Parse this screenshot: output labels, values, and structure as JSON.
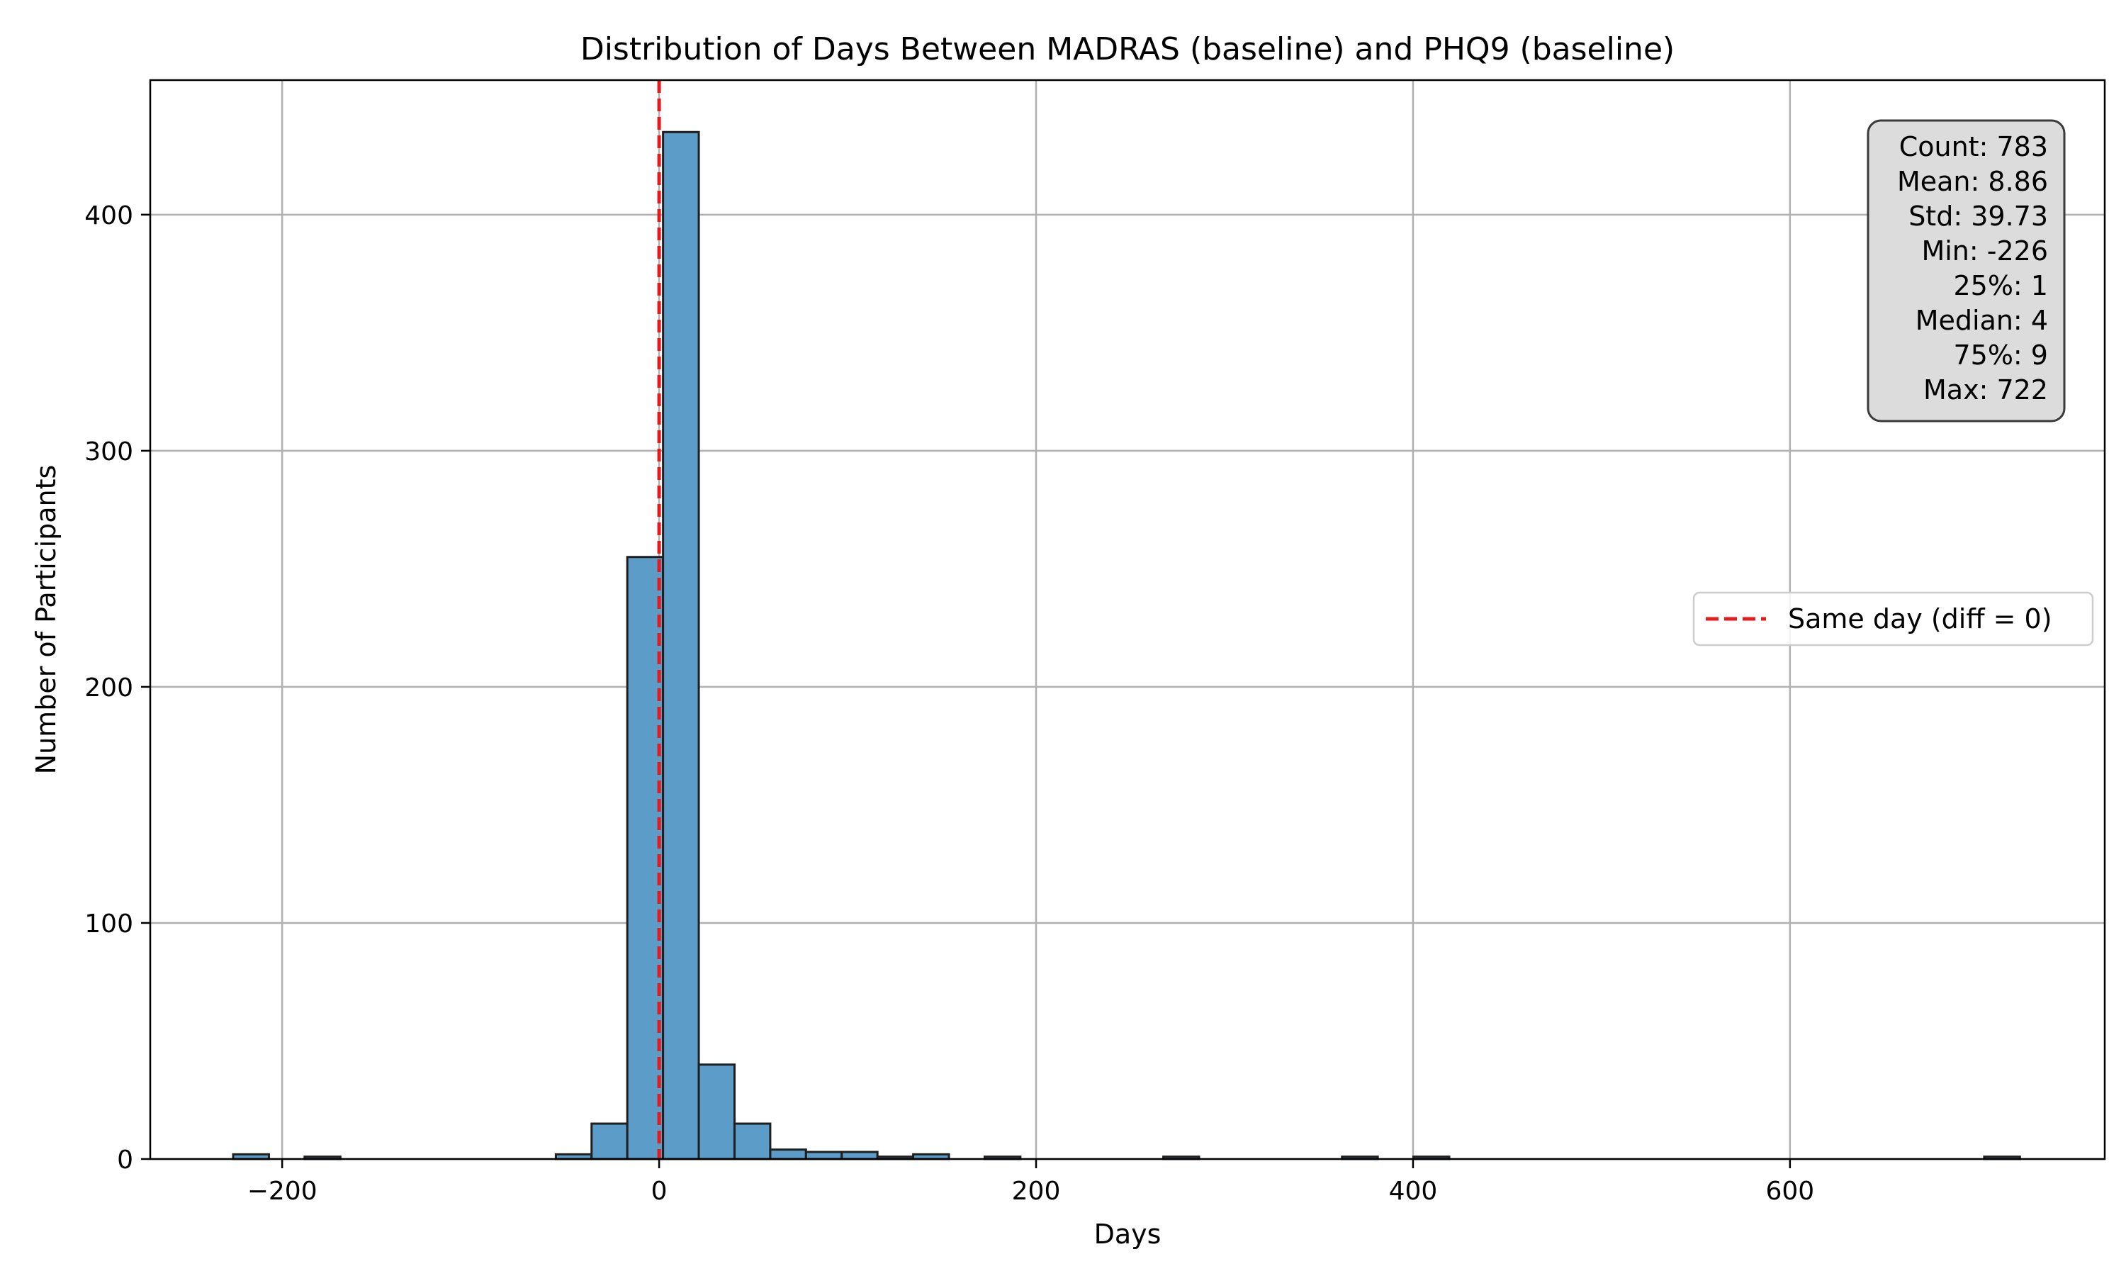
{
  "chart_data": {
    "type": "bar",
    "title": "Distribution of Days Between MADRAS (baseline) and PHQ9 (baseline)",
    "xlabel": "Days",
    "ylabel": "Number of Participants",
    "xlim": [
      -270,
      767
    ],
    "ylim": [
      0,
      457
    ],
    "xticks": [
      -200,
      0,
      200,
      400,
      600
    ],
    "xtick_labels": [
      "−200",
      "0",
      "200",
      "400",
      "600"
    ],
    "yticks": [
      0,
      100,
      200,
      300,
      400
    ],
    "ytick_labels": [
      "0",
      "100",
      "200",
      "300",
      "400"
    ],
    "grid": true,
    "bin_width": 18.96,
    "bins": [
      {
        "start": -226.0,
        "count": 2
      },
      {
        "start": -188.08,
        "count": 1
      },
      {
        "start": -54.8,
        "count": 2
      },
      {
        "start": -35.84,
        "count": 15
      },
      {
        "start": -16.88,
        "count": 255
      },
      {
        "start": 2.08,
        "count": 435
      },
      {
        "start": 21.04,
        "count": 40
      },
      {
        "start": 40.0,
        "count": 15
      },
      {
        "start": 58.96,
        "count": 4
      },
      {
        "start": 77.92,
        "count": 3
      },
      {
        "start": 96.88,
        "count": 3
      },
      {
        "start": 115.84,
        "count": 1
      },
      {
        "start": 134.8,
        "count": 2
      },
      {
        "start": 172.72,
        "count": 1
      },
      {
        "start": 267.52,
        "count": 1
      },
      {
        "start": 362.32,
        "count": 1
      },
      {
        "start": 400.24,
        "count": 1
      },
      {
        "start": 703.04,
        "count": 1
      }
    ],
    "bar_color": "#5b9cc9",
    "bar_edge_color": "#1f1f1f",
    "reference_line": {
      "x": 0,
      "color": "#e41a1c",
      "style": "dashed"
    },
    "legend": {
      "label": "Same day (diff = 0)",
      "position": "center-right"
    },
    "stats_box": {
      "position": "top-right",
      "lines": [
        "Count: 783",
        "Mean: 8.86",
        "Std: 39.73",
        "Min: -226",
        "25%: 1",
        "Median: 4",
        "75%: 9",
        "Max: 722"
      ]
    }
  }
}
